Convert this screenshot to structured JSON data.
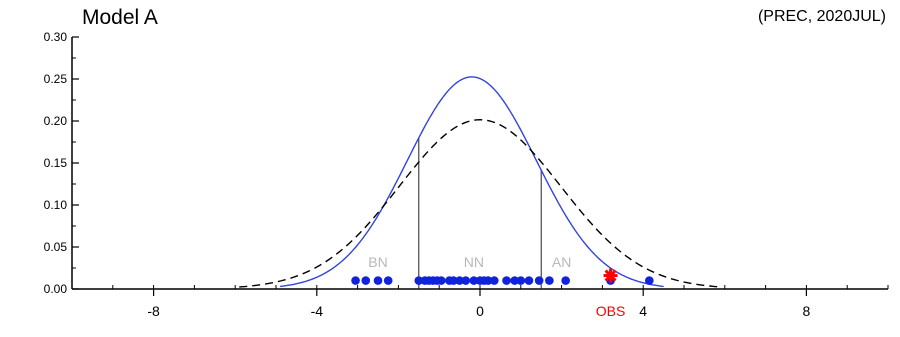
{
  "chart_data": {
    "type": "line",
    "title": "Model A",
    "subtitle": "(PREC, 2020JUL)",
    "xlim": [
      -10,
      10
    ],
    "ylim": [
      0,
      0.3
    ],
    "x_ticks": [
      -8,
      -4,
      0,
      4,
      8
    ],
    "x_tick_labels": [
      "-8",
      "-4",
      "0",
      "4",
      "8"
    ],
    "y_ticks": [
      0.0,
      0.05,
      0.1,
      0.15,
      0.2,
      0.25,
      0.3
    ],
    "y_tick_labels": [
      "0.00",
      "0.05",
      "0.10",
      "0.15",
      "0.20",
      "0.25",
      "0.30"
    ],
    "series": [
      {
        "style": "solid",
        "color": "#3344dd",
        "mean": -0.2,
        "sd": 1.58,
        "x_range": [
          -4.9,
          4.5
        ]
      },
      {
        "style": "dashed",
        "color": "#000000",
        "mean": 0.0,
        "sd": 1.98,
        "x_range": [
          -5.9,
          5.9
        ]
      }
    ],
    "threshold_lines": [
      -1.5,
      1.5
    ],
    "category_labels": [
      {
        "text": "BN",
        "x": -2.5
      },
      {
        "text": "NN",
        "x": -0.15
      },
      {
        "text": "AN",
        "x": 2.0
      }
    ],
    "members": {
      "color": "#1122dd",
      "y": 0.01,
      "x": [
        -3.05,
        -2.8,
        -2.5,
        -2.25,
        -1.5,
        -1.35,
        -1.25,
        -1.15,
        -1.05,
        -0.95,
        -0.75,
        -0.65,
        -0.5,
        -0.35,
        -0.15,
        0.0,
        0.1,
        0.2,
        0.35,
        0.65,
        0.85,
        1.0,
        1.2,
        1.45,
        1.7,
        2.1,
        3.2,
        4.15
      ]
    },
    "obs": {
      "label": "OBS",
      "x": 3.2,
      "y": 0.016,
      "color": "#ff0000"
    }
  }
}
